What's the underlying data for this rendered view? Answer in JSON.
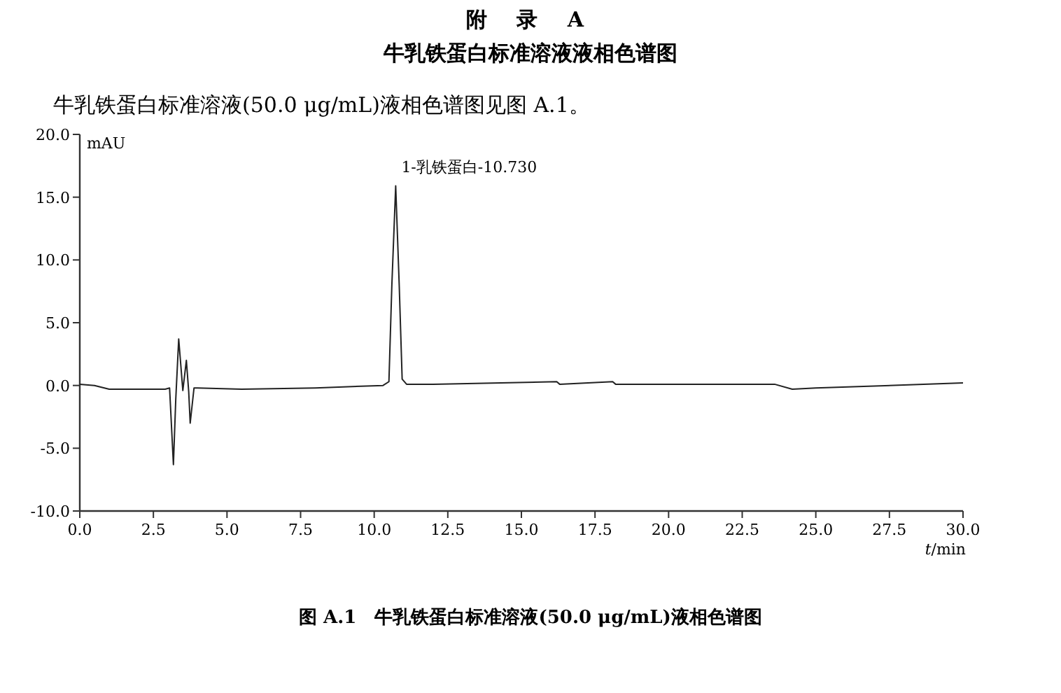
{
  "chart_data": {
    "type": "line",
    "title": "附 录 A",
    "subtitle": "牛乳铁蛋白标准溶液液相色谱图",
    "xlabel": "*t*/min",
    "ylabel": "mAU",
    "annotations": [
      "牛乳铁蛋白标准溶液(50.0 μg/mL)液相色谱图见图 A.1。",
      "图 A.1　牛乳铁蛋白标准溶液(50.0 μg/mL)液相色谱图",
      {
        "text": "1-乳铁蛋白-10.730",
        "x": 10.73,
        "y": 15.9
      }
    ],
    "color": "#222222",
    "line_style": "solid",
    "marker": "none",
    "grid": false,
    "x": [
      0,
      0.5,
      1.0,
      2.9,
      3.05,
      3.18,
      3.26,
      3.36,
      3.5,
      3.62,
      3.7,
      3.75,
      3.88,
      4.0,
      5.5,
      8.0,
      10.3,
      10.5,
      10.6,
      10.73,
      10.85,
      10.95,
      11.1,
      12.0,
      16.2,
      16.3,
      18.1,
      18.2,
      23.6,
      24.2,
      25.0,
      30.0
    ],
    "values": [
      0.1,
      0,
      -0.3,
      -0.3,
      -0.2,
      -6.3,
      -1.1,
      3.7,
      -0.4,
      2.0,
      -0.5,
      -3.0,
      -0.2,
      -0.2,
      -0.3,
      -0.2,
      0,
      0.3,
      8,
      15.9,
      8,
      0.5,
      0.1,
      0.1,
      0.3,
      0.1,
      0.3,
      0.1,
      0.1,
      -0.3,
      -0.2,
      0.2
    ],
    "xlim": [
      0,
      30
    ],
    "ylim": [
      -10,
      20
    ],
    "xticks": [
      {
        "value": 0,
        "label": "0.0"
      },
      {
        "value": 2.5,
        "label": "2.5"
      },
      {
        "value": 5,
        "label": "5.0"
      },
      {
        "value": 7.5,
        "label": "7.5"
      },
      {
        "value": 10,
        "label": "10.0"
      },
      {
        "value": 12.5,
        "label": "12.5"
      },
      {
        "value": 15,
        "label": "15.0"
      },
      {
        "value": 17.5,
        "label": "17.5"
      },
      {
        "value": 20,
        "label": "20.0"
      },
      {
        "value": 22.5,
        "label": "22.5"
      },
      {
        "value": 25,
        "label": "25.0"
      },
      {
        "value": 27.5,
        "label": "27.5"
      },
      {
        "value": 30,
        "label": "30.0"
      }
    ],
    "yticks": [
      {
        "value": -10,
        "label": "-10.0"
      },
      {
        "value": -5,
        "label": "-5.0"
      },
      {
        "value": 0,
        "label": "0.0"
      },
      {
        "value": 5,
        "label": "5.0"
      },
      {
        "value": 10,
        "label": "10.0"
      },
      {
        "value": 15,
        "label": "15.0"
      },
      {
        "value": 20,
        "label": "20.0"
      }
    ]
  }
}
